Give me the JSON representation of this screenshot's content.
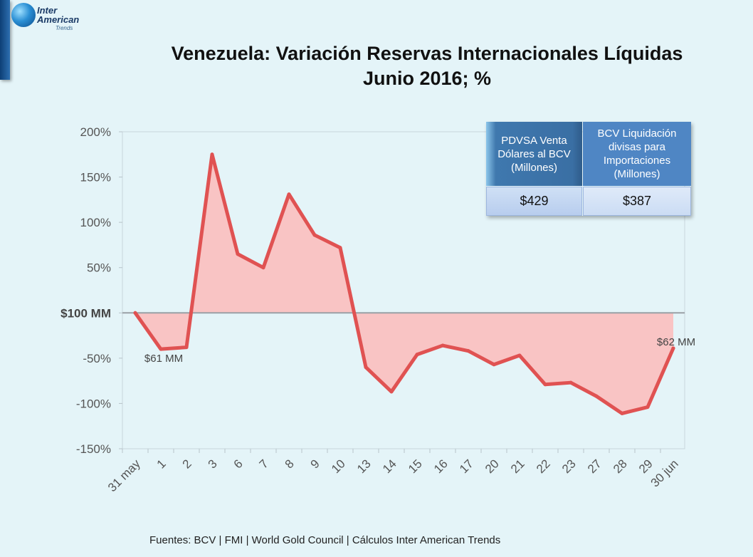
{
  "logo": {
    "line1": "Inter",
    "line2": "American",
    "line3": "Trends"
  },
  "title_line1": "Venezuela: Variación Reservas Internacionales Líquidas",
  "title_line2": "Junio 2016; %",
  "colors": {
    "line": "#e05252",
    "fill": "#f9c4c4",
    "baseline": "#9aa0a6",
    "axis_text": "#555555"
  },
  "table": {
    "header1": "PDVSA Venta Dólares al BCV (Millones)",
    "header2": "BCV Liquidación divisas para Importaciones (Millones)",
    "value1": "$429",
    "value2": "$387"
  },
  "source": "Fuentes: BCV | FMI | World Gold Council  | Cálculos Inter American Trends",
  "chart_data": {
    "type": "area",
    "categories": [
      "31 may",
      "1",
      "2",
      "3",
      "6",
      "7",
      "8",
      "9",
      "10",
      "13",
      "14",
      "15",
      "16",
      "17",
      "20",
      "21",
      "22",
      "23",
      "27",
      "28",
      "29",
      "30 jun"
    ],
    "values": [
      0,
      -40,
      -38,
      175,
      65,
      50,
      131,
      86,
      72,
      -60,
      -87,
      -46,
      -36,
      -42,
      -57,
      -47,
      -79,
      -77,
      -92,
      -111,
      -104,
      -39
    ],
    "ylim": [
      -150,
      200
    ],
    "yticks": [
      {
        "value": 200,
        "label": "200%"
      },
      {
        "value": 150,
        "label": "150%"
      },
      {
        "value": 100,
        "label": "100%"
      },
      {
        "value": 50,
        "label": "50%"
      },
      {
        "value": 0,
        "label": "$100 MM"
      },
      {
        "value": -50,
        "label": "-50%"
      },
      {
        "value": -100,
        "label": "-100%"
      },
      {
        "value": -150,
        "label": "-150%"
      }
    ],
    "annotations": [
      {
        "index": 1,
        "value": -40,
        "label": "$61 MM"
      },
      {
        "index": 21,
        "value": -39,
        "label": "$62 MM"
      }
    ],
    "grid": false
  }
}
